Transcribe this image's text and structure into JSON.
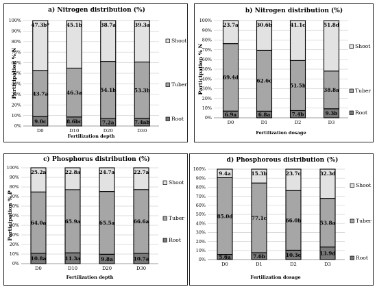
{
  "chart_data": [
    {
      "type": "bar",
      "stacked": true,
      "title": "a) Nitrogen distribution (%)",
      "xlabel": "Fertilization depth",
      "ylabel": "Participation % N",
      "categories": [
        "D0",
        "D10",
        "D20",
        "D30"
      ],
      "ylim": [
        0,
        100
      ],
      "yticks": [
        "0%",
        "10%",
        "20%",
        "30%",
        "40%",
        "50%",
        "60%",
        "70%",
        "80%",
        "90%",
        "100%"
      ],
      "grid": true,
      "legend": "right",
      "series": [
        {
          "name": "Root",
          "color": "#7a7a7a",
          "values": [
            9.0,
            8.6,
            7.2,
            7.4
          ],
          "labels": [
            "9.0c",
            "8.6bc",
            "7.2a",
            "7.4ab"
          ]
        },
        {
          "name": "Tuber",
          "color": "#a6a6a6",
          "values": [
            43.7,
            46.3,
            54.1,
            53.3
          ],
          "labels": [
            "43.7a",
            "46.3a",
            "54.1b",
            "53.3b"
          ]
        },
        {
          "name": "Shoot",
          "color": "#e2e2e2",
          "values": [
            47.3,
            45.1,
            38.7,
            39.3
          ],
          "labels": [
            "47.3b*",
            "45.1b",
            "38.7a",
            "39.3a"
          ]
        }
      ]
    },
    {
      "type": "bar",
      "stacked": true,
      "title": "b) Nitrogen distribution (%)",
      "xlabel": "Fertilization dosage",
      "ylabel": "Participation % N",
      "categories": [
        "D0",
        "D1",
        "D2",
        "D3"
      ],
      "ylim": [
        0,
        100
      ],
      "yticks": [
        "0%",
        "10%",
        "20%",
        "30%",
        "40%",
        "50%",
        "60%",
        "70%",
        "80%",
        "90%",
        "100%"
      ],
      "grid": true,
      "legend": "right",
      "series": [
        {
          "name": "Root",
          "color": "#7a7a7a",
          "values": [
            6.9,
            6.8,
            7.4,
            9.3
          ],
          "labels": [
            "6.9a",
            "6.8a",
            "7.4b",
            "9.3b"
          ]
        },
        {
          "name": "Tuber",
          "color": "#a6a6a6",
          "values": [
            69.4,
            62.6,
            51.5,
            38.8
          ],
          "labels": [
            "69.4d",
            "62.6c",
            "51.5b",
            "38.8a"
          ]
        },
        {
          "name": "Shoot",
          "color": "#e2e2e2",
          "values": [
            23.7,
            30.6,
            41.1,
            51.8
          ],
          "labels": [
            "23.7a",
            "30.6b",
            "41.1c",
            "51.8d"
          ]
        }
      ]
    },
    {
      "type": "bar",
      "stacked": true,
      "title": "c) Phosphorus distribution (%)",
      "xlabel": "Fertilization depth",
      "ylabel": "Participation % P",
      "categories": [
        "D0",
        "D10",
        "D20",
        "D30"
      ],
      "ylim": [
        0,
        100
      ],
      "yticks": [
        "0%",
        "10%",
        "20%",
        "30%",
        "40%",
        "50%",
        "60%",
        "70%",
        "80%",
        "90%",
        "100%"
      ],
      "grid": true,
      "legend": "right",
      "series": [
        {
          "name": "Root",
          "color": "#7a7a7a",
          "values": [
            10.8,
            11.3,
            9.8,
            10.7
          ],
          "labels": [
            "10.8a",
            "11.3a",
            "9.8a",
            "10.7a"
          ]
        },
        {
          "name": "Tuber",
          "color": "#a6a6a6",
          "values": [
            64.0,
            65.9,
            65.5,
            66.6
          ],
          "labels": [
            "64.0a",
            "65.9a",
            "65.5a",
            "66.6a"
          ]
        },
        {
          "name": "Shoot",
          "color": "#e2e2e2",
          "values": [
            25.2,
            22.8,
            24.7,
            22.7
          ],
          "labels": [
            "25.2a",
            "22.8a",
            "24.7a",
            "22.7a"
          ]
        }
      ]
    },
    {
      "type": "bar",
      "stacked": true,
      "title": "d) Phosphorous distribution (%)",
      "xlabel": "Fertilization dosage",
      "ylabel": "",
      "categories": [
        "D0",
        "D1",
        "D2",
        "D3"
      ],
      "ylim": [
        0,
        100
      ],
      "yticks": [
        "0%",
        "10%",
        "20%",
        "30%",
        "40%",
        "50%",
        "60%",
        "70%",
        "80%",
        "90%",
        "100%"
      ],
      "grid": true,
      "legend": "right",
      "series": [
        {
          "name": "Root",
          "color": "#7a7a7a",
          "values": [
            5.6,
            7.6,
            10.3,
            13.9
          ],
          "labels": [
            "5.6a",
            "7.6b",
            "10.3c",
            "13.9d"
          ]
        },
        {
          "name": "Tuber",
          "color": "#a6a6a6",
          "values": [
            85.0,
            77.1,
            66.0,
            53.8
          ],
          "labels": [
            "85.0d",
            "77.1c",
            "66.0b",
            "53.8a"
          ]
        },
        {
          "name": "Shoot",
          "color": "#e2e2e2",
          "values": [
            9.4,
            15.3,
            23.7,
            32.3
          ],
          "labels": [
            "9.4a",
            "15.3b",
            "23.7c",
            "32.3d"
          ]
        }
      ]
    }
  ]
}
